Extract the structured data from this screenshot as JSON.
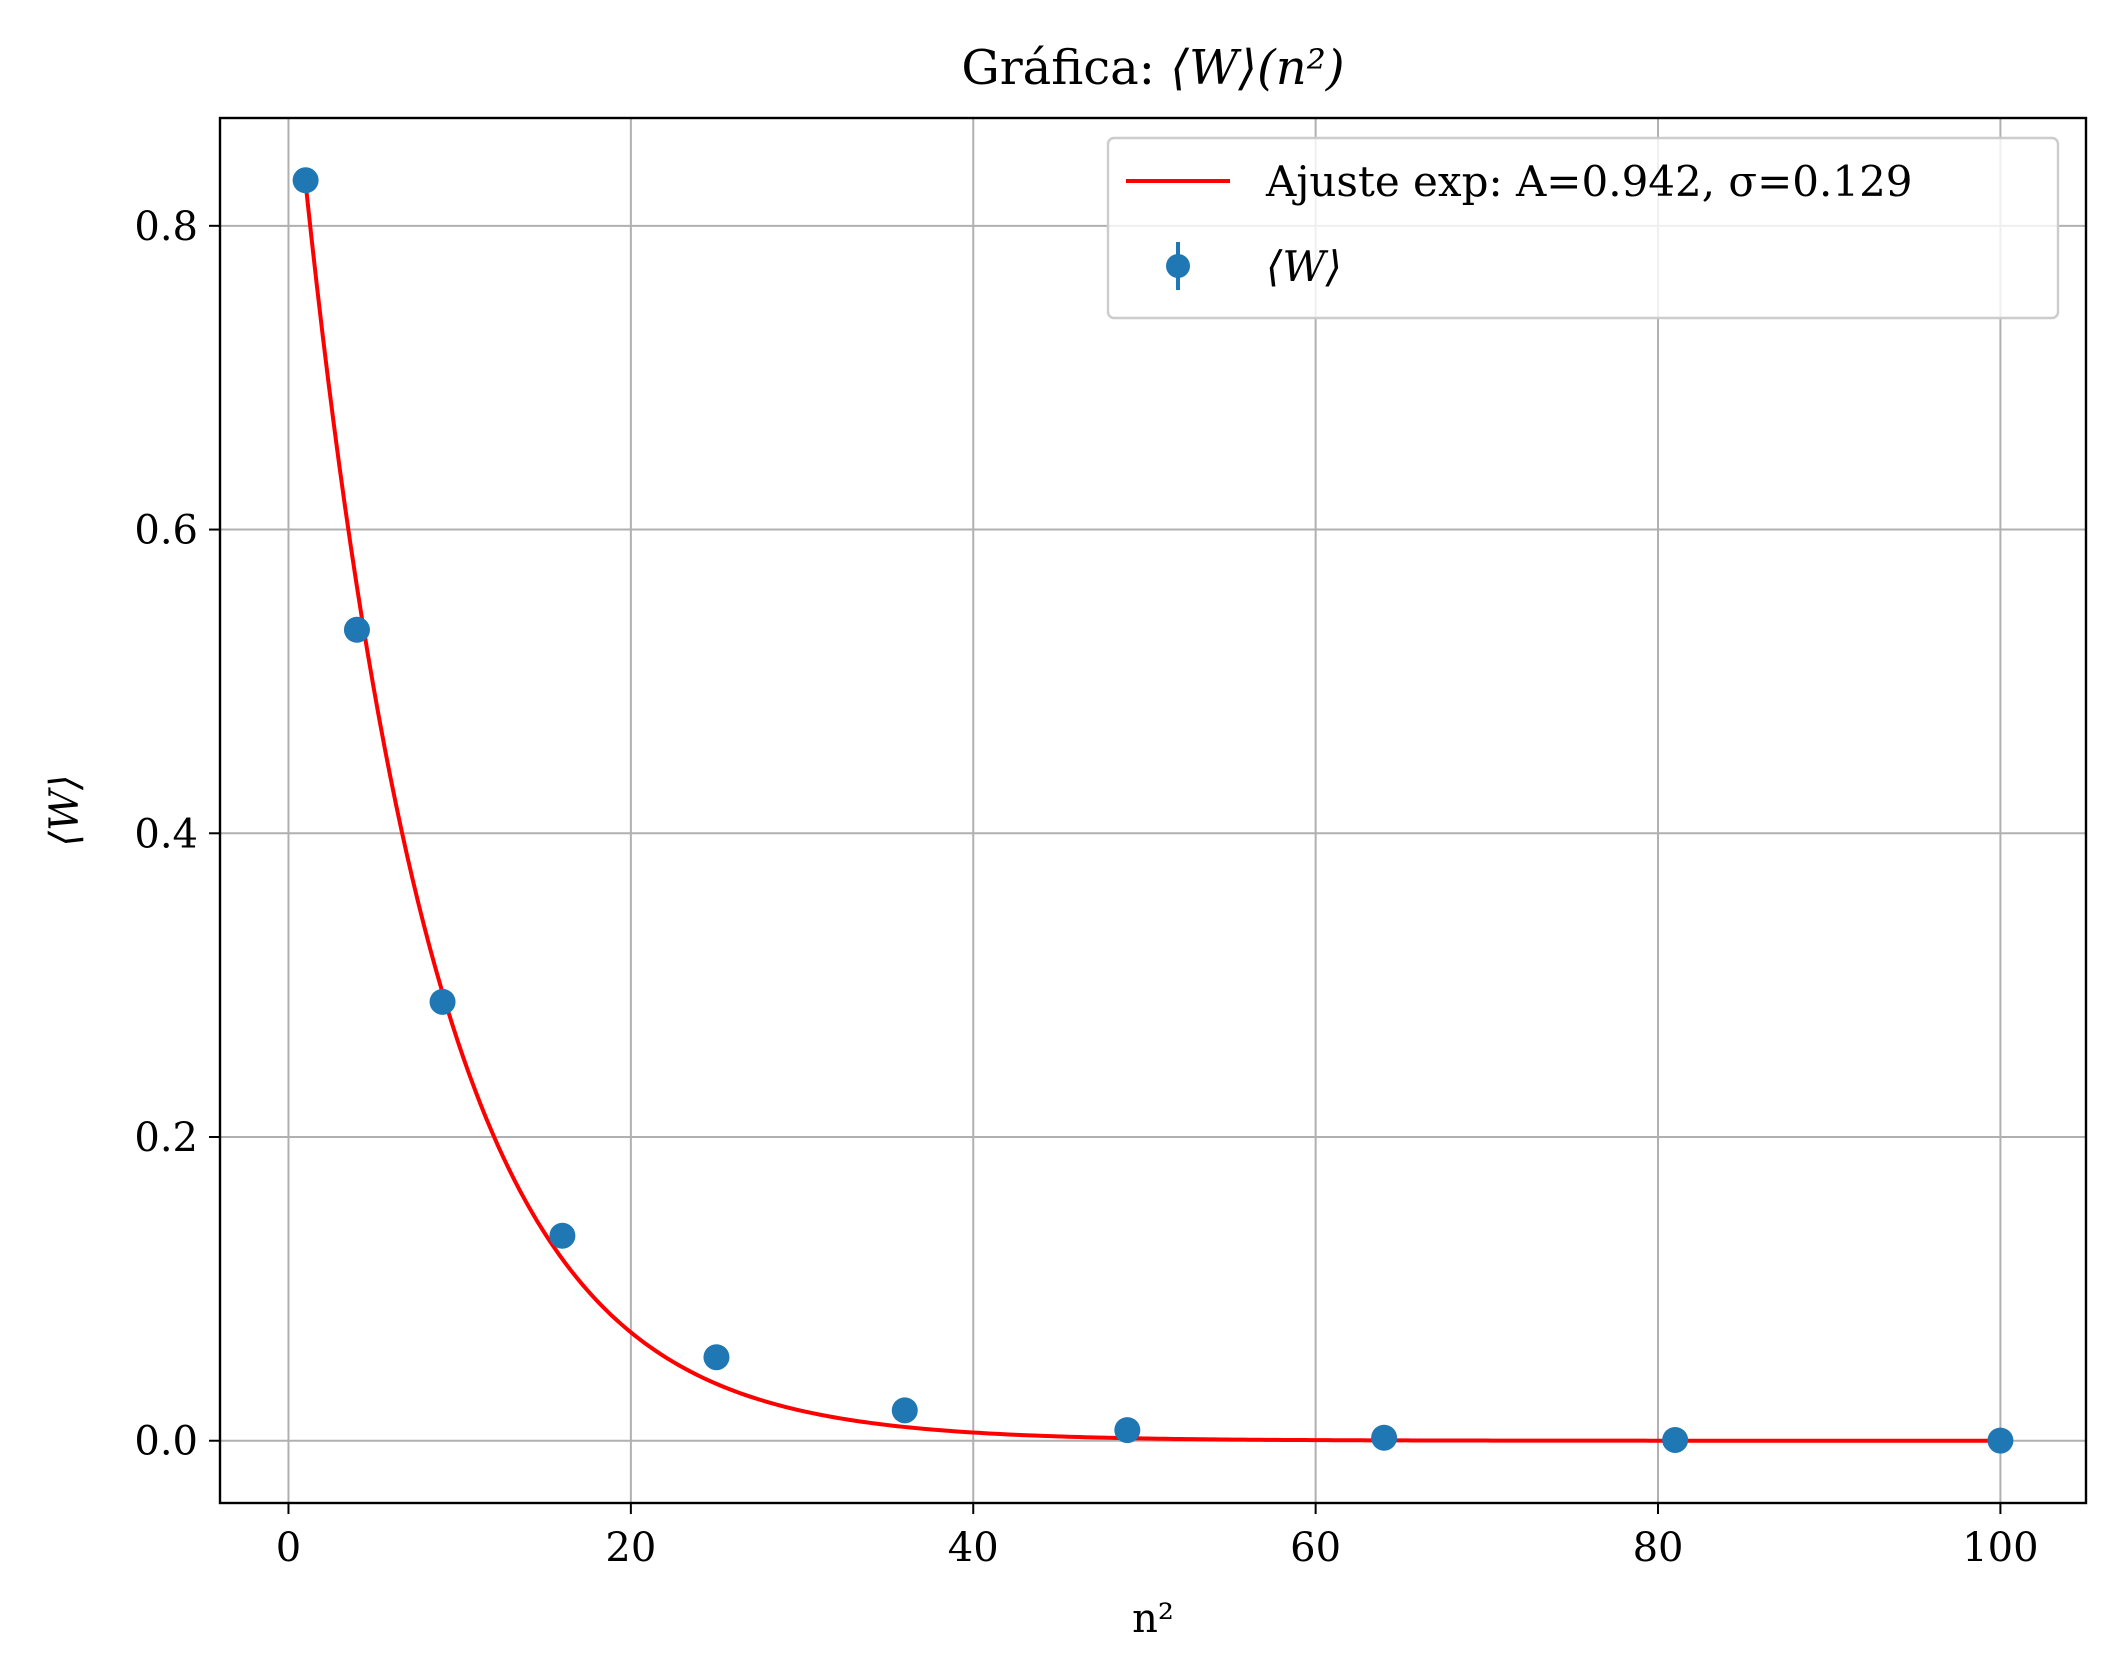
{
  "chart_data": {
    "type": "scatter",
    "title_prefix": "Gráfica: ",
    "title_math": "⟨W⟩(n²)",
    "xlabel": "n²",
    "ylabel": "⟨W⟩",
    "xlim": [
      -4,
      105
    ],
    "ylim": [
      -0.041,
      0.871
    ],
    "xticks": [
      0,
      20,
      40,
      60,
      80,
      100
    ],
    "xtick_labels": [
      "0",
      "20",
      "40",
      "60",
      "80",
      "100"
    ],
    "yticks": [
      0.0,
      0.2,
      0.4,
      0.6,
      0.8
    ],
    "ytick_labels": [
      "0.0",
      "0.2",
      "0.4",
      "0.6",
      "0.8"
    ],
    "grid": true,
    "legend_position": "top-right",
    "series": [
      {
        "name": "⟨W⟩",
        "kind": "points",
        "color": "#1f77b4",
        "x": [
          1,
          4,
          9,
          16,
          25,
          36,
          49,
          64,
          81,
          100
        ],
        "y": [
          0.83,
          0.534,
          0.289,
          0.135,
          0.055,
          0.02,
          0.007,
          0.002,
          0.0005,
          0.0001
        ]
      },
      {
        "name": "Ajuste exp: A=0.942, σ=0.129",
        "kind": "fit",
        "color": "#ff0000",
        "A": 0.942,
        "sigma": 0.129,
        "x_range": [
          1,
          100
        ]
      }
    ]
  }
}
